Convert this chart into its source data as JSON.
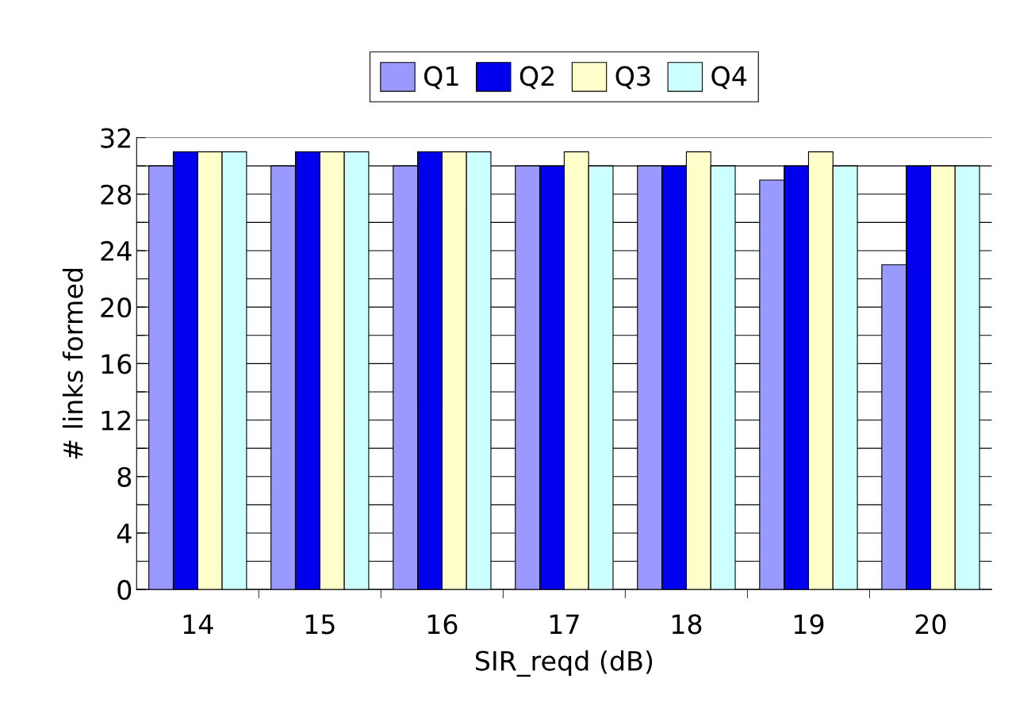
{
  "chart_data": {
    "type": "bar",
    "xlabel": "SIR_reqd (dB)",
    "ylabel": "# links formed",
    "categories": [
      "14",
      "15",
      "16",
      "17",
      "18",
      "19",
      "20"
    ],
    "series": [
      {
        "name": "Q1",
        "color": "#9999ff",
        "values": [
          30,
          30,
          30,
          30,
          30,
          29,
          23
        ]
      },
      {
        "name": "Q2",
        "color": "#0000ee",
        "values": [
          31,
          31,
          31,
          30,
          30,
          30,
          30
        ]
      },
      {
        "name": "Q3",
        "color": "#ffffcc",
        "values": [
          31,
          31,
          31,
          31,
          31,
          31,
          30
        ]
      },
      {
        "name": "Q4",
        "color": "#ccffff",
        "values": [
          31,
          31,
          31,
          30,
          30,
          30,
          30
        ]
      }
    ],
    "ylim": [
      0,
      32
    ],
    "yticks": [
      0,
      {
        "value": 2,
        "label": null
      },
      4,
      {
        "value": 6,
        "label": null
      },
      8,
      {
        "value": 10,
        "label": null
      },
      12,
      {
        "value": 14,
        "label": null
      },
      16,
      {
        "value": 18,
        "label": null
      },
      20,
      {
        "value": 22,
        "label": null
      },
      24,
      {
        "value": 26,
        "label": null
      },
      28,
      {
        "value": 30,
        "label": null
      },
      32
    ],
    "grid": "y",
    "legend": "top"
  }
}
